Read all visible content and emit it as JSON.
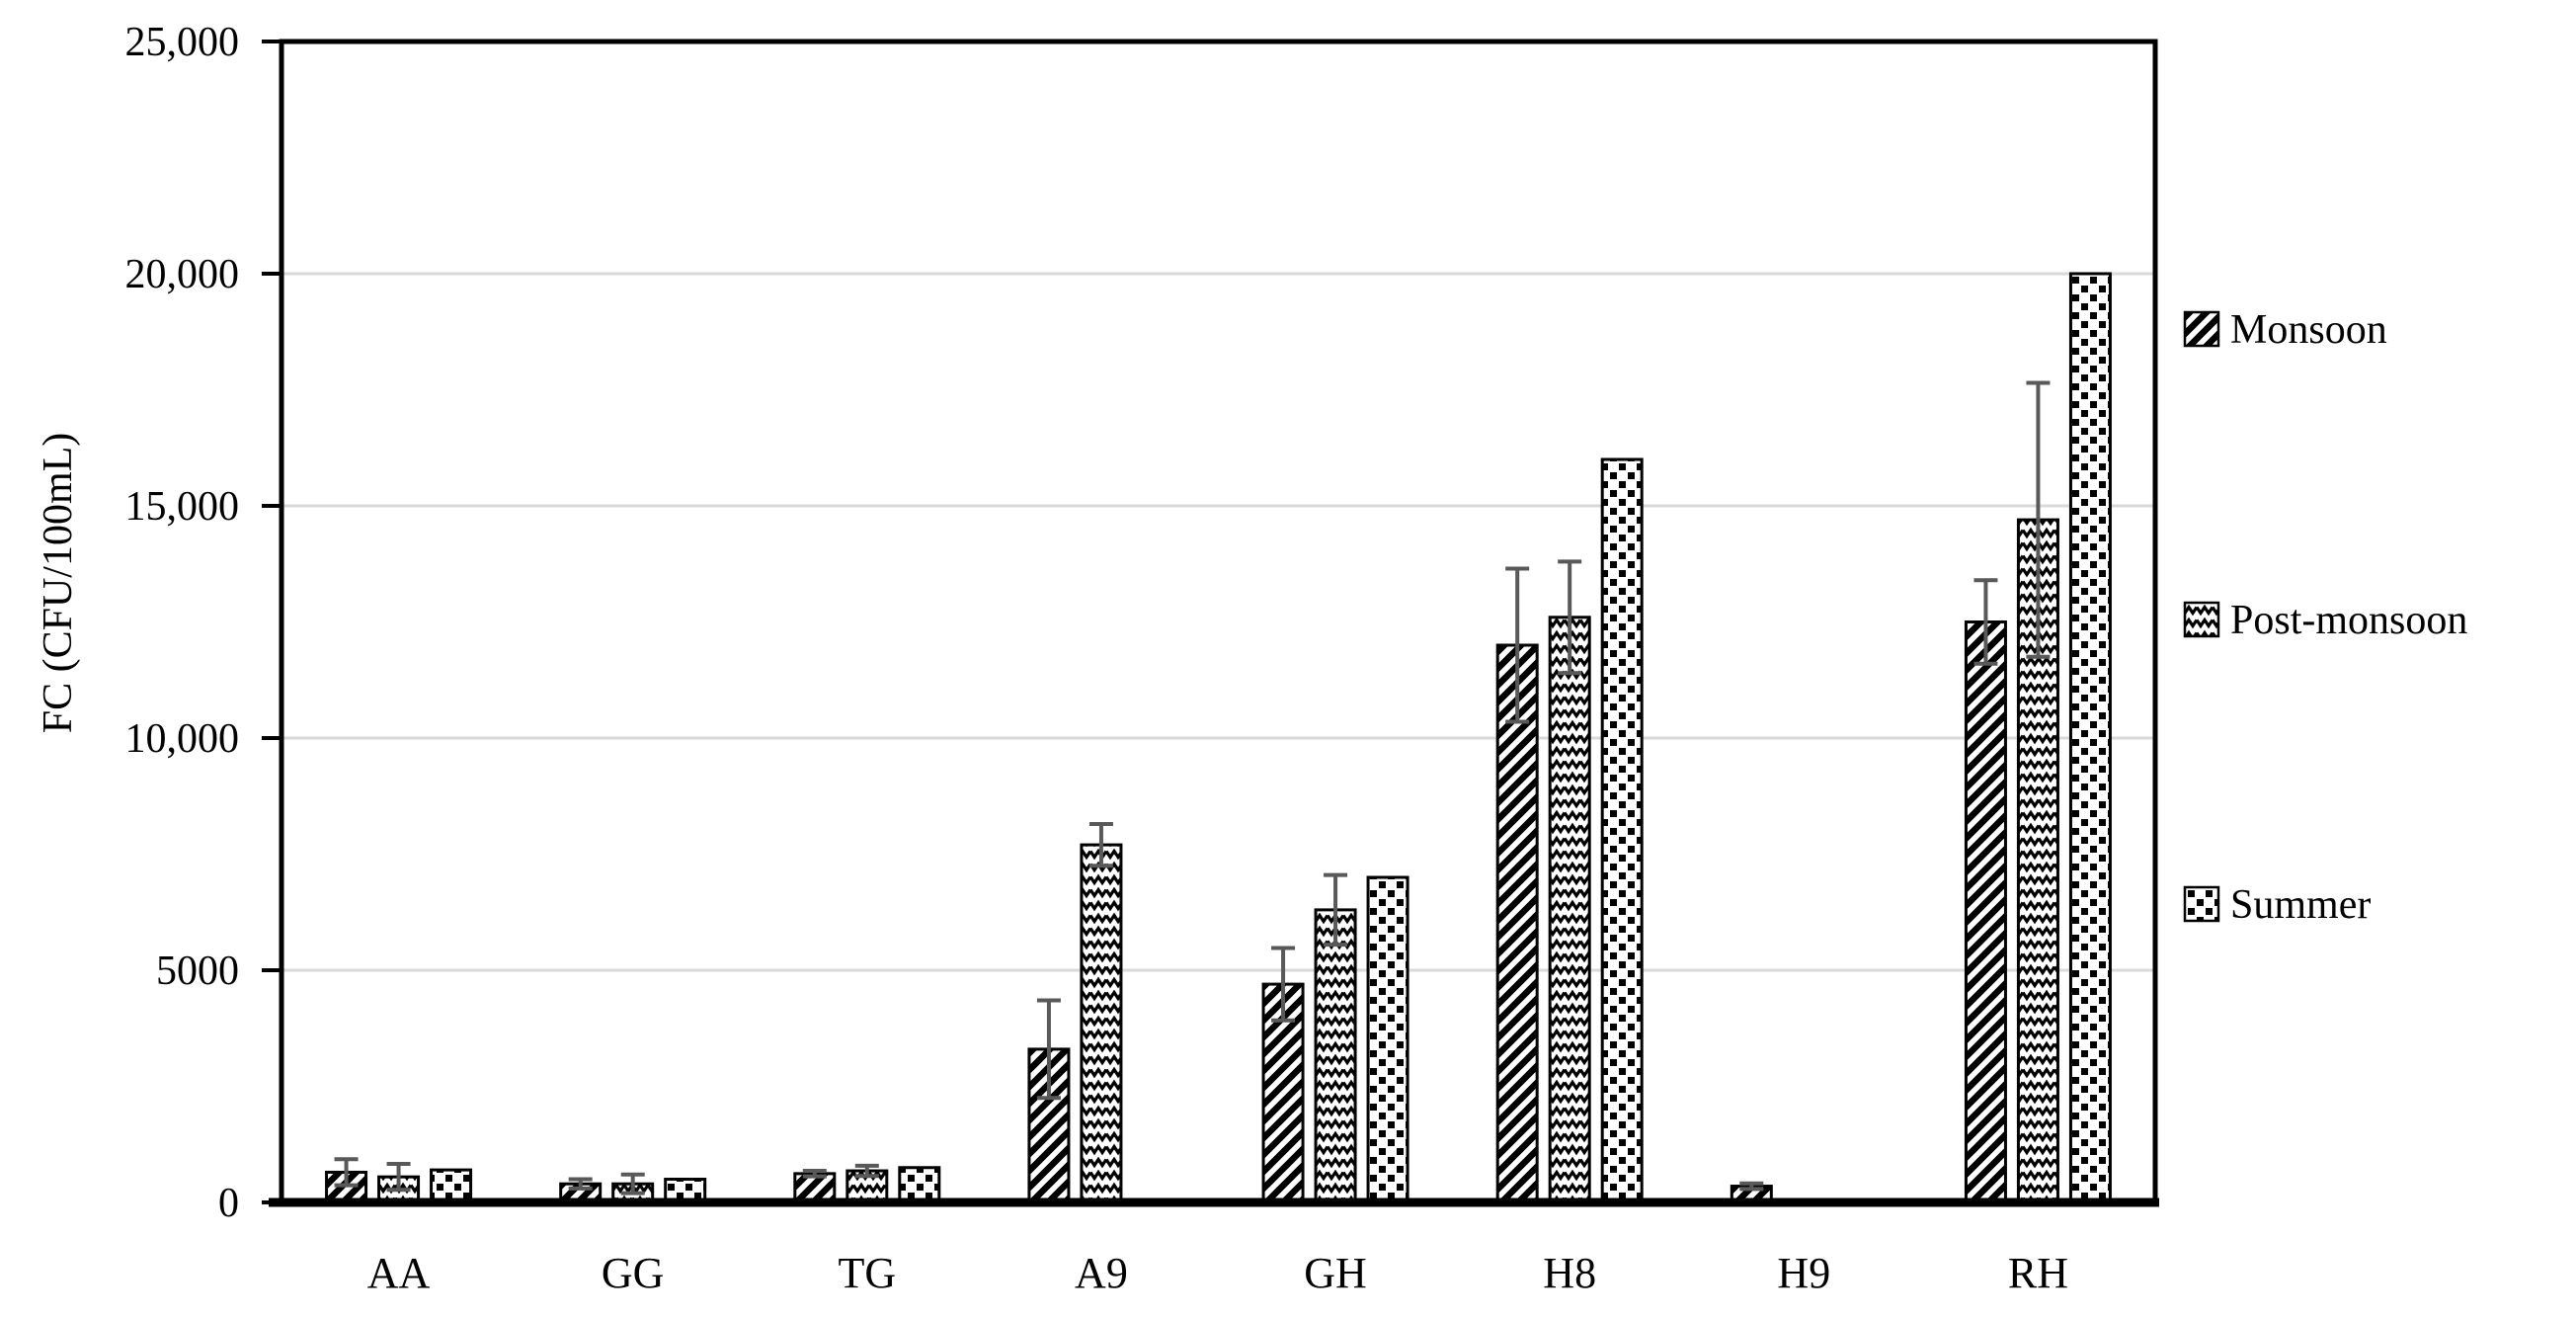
{
  "page": {
    "background": "#ffffff"
  },
  "chart_data": {
    "type": "bar",
    "title": "",
    "ylabel": "FC (CFU/100mL)",
    "xlabel": "",
    "ylim": [
      0,
      25000
    ],
    "ytick_interval": 5000,
    "grid": "horizontal",
    "legend_position": "right",
    "categories": [
      "AA",
      "GG",
      "TG",
      "A9",
      "GH",
      "H8",
      "H9",
      "RH"
    ],
    "yticks": [
      {
        "value": 0,
        "label": "0"
      },
      {
        "value": 5000,
        "label": "5000"
      },
      {
        "value": 10000,
        "label": "10,000"
      },
      {
        "value": 15000,
        "label": "15,000"
      },
      {
        "value": 20000,
        "label": "20,000"
      },
      {
        "value": 25000,
        "label": "25,000"
      }
    ],
    "series": [
      {
        "name": "Monsoon",
        "pattern": "diagonal-hatch",
        "values": [
          650,
          400,
          620,
          3300,
          4700,
          12000,
          350,
          12500
        ],
        "errors": [
          280,
          100,
          60,
          1050,
          780,
          1650,
          60,
          900
        ]
      },
      {
        "name": "Post-monsoon",
        "pattern": "waves",
        "values": [
          550,
          400,
          680,
          7700,
          6300,
          12600,
          null,
          14700
        ],
        "errors": [
          280,
          200,
          110,
          450,
          750,
          1200,
          null,
          2950
        ]
      },
      {
        "name": "Summer",
        "pattern": "dots",
        "values": [
          700,
          500,
          750,
          null,
          7000,
          16000,
          null,
          20000
        ],
        "errors": [
          null,
          null,
          null,
          null,
          null,
          null,
          null,
          null
        ]
      }
    ],
    "colors": {
      "bar_fill": "#ffffff",
      "bar_stroke": "#000000",
      "grid": "#d9d9d9",
      "error": "#595959",
      "axis": "#000000",
      "text": "#000000"
    }
  }
}
